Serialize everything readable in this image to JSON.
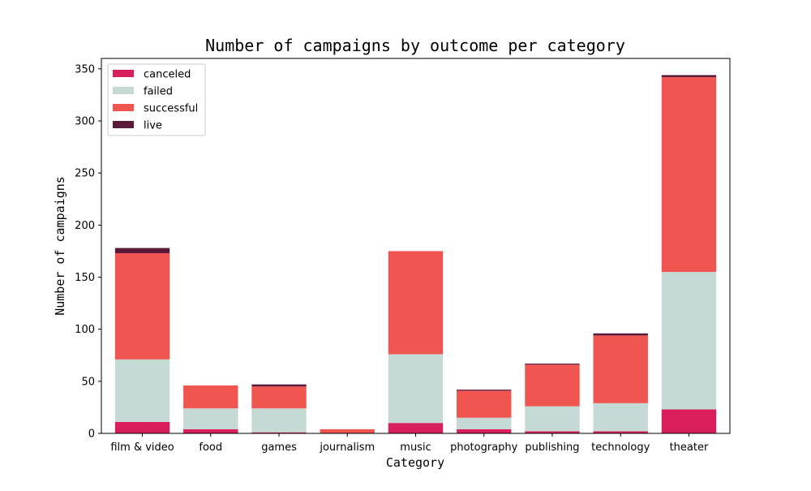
{
  "chart_data": {
    "type": "bar",
    "stacked": true,
    "title": "Number of campaigns by outcome per category",
    "xlabel": "Category",
    "ylabel": "Number of campaigns",
    "categories": [
      "film & video",
      "food",
      "games",
      "journalism",
      "music",
      "photography",
      "publishing",
      "technology",
      "theater"
    ],
    "ylim": [
      0,
      360
    ],
    "yticks": [
      0,
      50,
      100,
      150,
      200,
      250,
      300,
      350
    ],
    "grid": false,
    "legend_position": "top-left",
    "series": [
      {
        "name": "canceled",
        "color": "#d81f5c",
        "values": [
          11,
          4,
          1,
          0,
          10,
          4,
          2,
          2,
          23
        ]
      },
      {
        "name": "failed",
        "color": "#c5d9d5",
        "values": [
          60,
          20,
          23,
          0,
          66,
          11,
          24,
          27,
          132
        ]
      },
      {
        "name": "successful",
        "color": "#f05550",
        "values": [
          102,
          22,
          21,
          4,
          99,
          26,
          40,
          65,
          187
        ]
      },
      {
        "name": "live",
        "color": "#5c1a3a",
        "values": [
          5,
          0,
          2,
          0,
          0,
          1,
          1,
          2,
          2
        ]
      }
    ]
  }
}
